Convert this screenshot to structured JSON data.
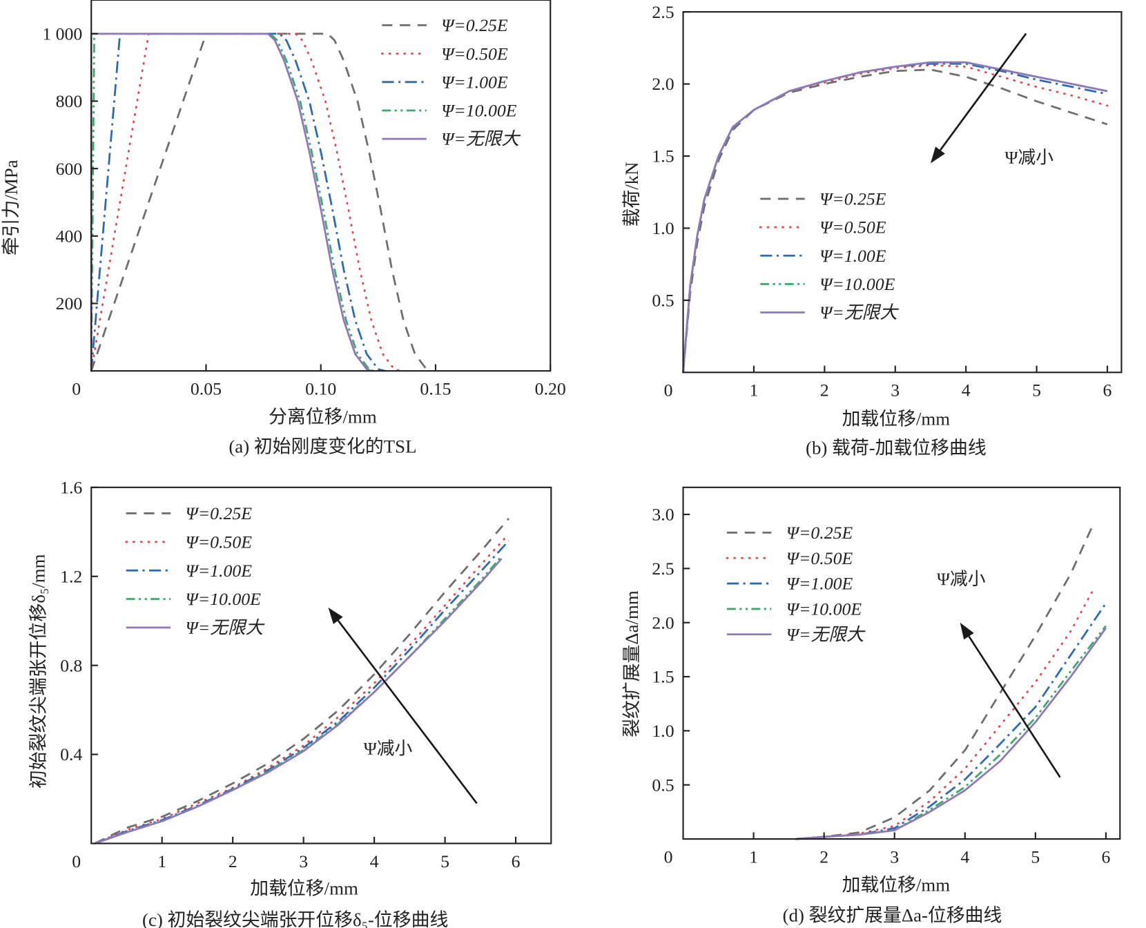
{
  "colors": {
    "0.25E": "#6e6e6e",
    "0.50E": "#e0474c",
    "1.00E": "#2b6bb5",
    "10.00E": "#3da86c",
    "inf": "#8f78b8",
    "axis": "#222222"
  },
  "chart_data": [
    {
      "id": "a",
      "type": "line",
      "caption": "(a) 初始刚度变化的TSL",
      "xlabel": "分离位移/mm",
      "ylabel": "牵引力/MPa",
      "xlim": [
        0,
        0.2
      ],
      "ylim": [
        0,
        1100
      ],
      "origin_label": "0",
      "xticks": [
        {
          "v": 0.05,
          "t": "0.05"
        },
        {
          "v": 0.1,
          "t": "0.10"
        },
        {
          "v": 0.15,
          "t": "0.15"
        },
        {
          "v": 0.2,
          "t": "0.20"
        }
      ],
      "yticks": [
        {
          "v": 200,
          "t": "200"
        },
        {
          "v": 400,
          "t": "400"
        },
        {
          "v": 600,
          "t": "600"
        },
        {
          "v": 800,
          "t": "800"
        },
        {
          "v": 1000,
          "t": "1 000"
        }
      ],
      "legend": "top-right",
      "series": [
        {
          "name": "Ψ=0.25E",
          "key": "0.25E",
          "x": [
            0,
            0.05,
            0.103,
            0.106,
            0.11,
            0.116,
            0.121,
            0.126,
            0.131,
            0.136,
            0.141,
            0.146,
            0.148
          ],
          "y": [
            0,
            1000,
            1000,
            980,
            920,
            800,
            650,
            480,
            300,
            150,
            50,
            5,
            0
          ]
        },
        {
          "name": "Ψ=0.50E",
          "key": "0.50E",
          "x": [
            0,
            0.025,
            0.089,
            0.092,
            0.096,
            0.102,
            0.107,
            0.112,
            0.117,
            0.122,
            0.127,
            0.132,
            0.135
          ],
          "y": [
            0,
            1000,
            1000,
            980,
            920,
            800,
            650,
            480,
            300,
            150,
            50,
            5,
            0
          ]
        },
        {
          "name": "Ψ=1.00E",
          "key": "1.00E",
          "x": [
            0,
            0.0125,
            0.082,
            0.085,
            0.089,
            0.095,
            0.1,
            0.105,
            0.11,
            0.115,
            0.12,
            0.125,
            0.128
          ],
          "y": [
            0,
            1000,
            1000,
            980,
            920,
            800,
            650,
            480,
            300,
            150,
            50,
            5,
            0
          ]
        },
        {
          "name": "Ψ=10.00E",
          "key": "10.00E",
          "x": [
            0,
            0.0013,
            0.078,
            0.081,
            0.085,
            0.091,
            0.096,
            0.101,
            0.106,
            0.111,
            0.116,
            0.121,
            0.123
          ],
          "y": [
            0,
            1000,
            1000,
            980,
            920,
            800,
            650,
            480,
            300,
            150,
            50,
            5,
            0
          ]
        },
        {
          "name": "Ψ=无限大",
          "key": "inf",
          "x": [
            0,
            0,
            0.077,
            0.08,
            0.084,
            0.09,
            0.095,
            0.1,
            0.105,
            0.11,
            0.115,
            0.12,
            0.122
          ],
          "y": [
            0,
            1000,
            1000,
            980,
            920,
            800,
            650,
            480,
            300,
            150,
            50,
            5,
            0
          ]
        }
      ]
    },
    {
      "id": "b",
      "type": "line",
      "caption": "(b) 载荷-加载位移曲线",
      "xlabel": "加载位移/mm",
      "ylabel": "载荷/kN",
      "xlim": [
        0,
        6.2
      ],
      "ylim": [
        0,
        2.5
      ],
      "origin_label": "0",
      "xticks": [
        {
          "v": 1,
          "t": "1"
        },
        {
          "v": 2,
          "t": "2"
        },
        {
          "v": 3,
          "t": "3"
        },
        {
          "v": 4,
          "t": "4"
        },
        {
          "v": 5,
          "t": "5"
        },
        {
          "v": 6,
          "t": "6"
        }
      ],
      "yticks": [
        {
          "v": 0.5,
          "t": "0.5"
        },
        {
          "v": 1.0,
          "t": "1.0"
        },
        {
          "v": 1.5,
          "t": "1.5"
        },
        {
          "v": 2.0,
          "t": "2.0"
        },
        {
          "v": 2.5,
          "t": "2.5"
        }
      ],
      "legend": "center-left",
      "annotation": {
        "text": "Ψ减小",
        "arrow_from": [
          4.85,
          2.35
        ],
        "arrow_to": [
          3.5,
          1.45
        ],
        "text_at": [
          4.55,
          1.45
        ]
      },
      "series": [
        {
          "name": "Ψ=0.25E",
          "key": "0.25E",
          "x": [
            0,
            0.1,
            0.2,
            0.3,
            0.5,
            0.7,
            1,
            1.5,
            2,
            2.5,
            3,
            3.5,
            4,
            4.5,
            5,
            5.5,
            6
          ],
          "y": [
            0,
            0.55,
            0.9,
            1.15,
            1.47,
            1.68,
            1.82,
            1.94,
            2.0,
            2.05,
            2.09,
            2.1,
            2.05,
            1.97,
            1.88,
            1.8,
            1.72
          ]
        },
        {
          "name": "Ψ=0.50E",
          "key": "0.50E",
          "x": [
            0,
            0.1,
            0.2,
            0.3,
            0.5,
            0.7,
            1,
            1.5,
            2,
            2.5,
            3,
            3.5,
            4,
            4.5,
            5,
            5.5,
            6
          ],
          "y": [
            0,
            0.6,
            0.95,
            1.2,
            1.5,
            1.7,
            1.82,
            1.95,
            2.01,
            2.07,
            2.11,
            2.13,
            2.12,
            2.05,
            1.98,
            1.92,
            1.85
          ]
        },
        {
          "name": "Ψ=1.00E",
          "key": "1.00E",
          "x": [
            0,
            0.1,
            0.2,
            0.3,
            0.5,
            0.7,
            1,
            1.5,
            2,
            2.5,
            3,
            3.5,
            4,
            4.5,
            5,
            5.5,
            6
          ],
          "y": [
            0,
            0.6,
            0.95,
            1.2,
            1.5,
            1.7,
            1.82,
            1.95,
            2.02,
            2.08,
            2.12,
            2.14,
            2.14,
            2.09,
            2.03,
            1.98,
            1.93
          ]
        },
        {
          "name": "Ψ=10.00E",
          "key": "10.00E",
          "x": [
            0,
            0.1,
            0.2,
            0.3,
            0.5,
            0.7,
            1,
            1.5,
            2,
            2.5,
            3,
            3.5,
            4,
            4.5,
            5,
            5.5,
            6
          ],
          "y": [
            0,
            0.6,
            0.95,
            1.2,
            1.5,
            1.7,
            1.82,
            1.95,
            2.02,
            2.08,
            2.12,
            2.15,
            2.15,
            2.1,
            2.05,
            2.0,
            1.95
          ]
        },
        {
          "name": "Ψ=无限大",
          "key": "inf",
          "x": [
            0,
            0.1,
            0.2,
            0.3,
            0.5,
            0.7,
            1,
            1.5,
            2,
            2.5,
            3,
            3.5,
            4,
            4.5,
            5,
            5.5,
            6
          ],
          "y": [
            0,
            0.6,
            0.95,
            1.2,
            1.5,
            1.7,
            1.82,
            1.95,
            2.02,
            2.08,
            2.12,
            2.15,
            2.15,
            2.1,
            2.05,
            2.0,
            1.95
          ]
        }
      ]
    },
    {
      "id": "c",
      "type": "line",
      "caption": "(c) 初始裂纹尖端张开位移δ₅-位移曲线",
      "xlabel": "加载位移/mm",
      "ylabel": "初始裂纹尖端张开位移δ₅/mm",
      "xlim": [
        0,
        6.5
      ],
      "ylim": [
        0,
        1.6
      ],
      "origin_label": "0",
      "xticks": [
        {
          "v": 1,
          "t": "1"
        },
        {
          "v": 2,
          "t": "2"
        },
        {
          "v": 3,
          "t": "3"
        },
        {
          "v": 4,
          "t": "4"
        },
        {
          "v": 5,
          "t": "5"
        },
        {
          "v": 6,
          "t": "6"
        }
      ],
      "yticks": [
        {
          "v": 0.4,
          "t": "0.4"
        },
        {
          "v": 0.8,
          "t": "0.8"
        },
        {
          "v": 1.2,
          "t": "1.2"
        },
        {
          "v": 1.6,
          "t": "1.6"
        }
      ],
      "legend": "top-left",
      "annotation": {
        "text": "Ψ减小",
        "arrow_from": [
          5.45,
          0.18
        ],
        "arrow_to": [
          3.35,
          1.06
        ],
        "text_at": [
          3.85,
          0.4
        ]
      },
      "series": [
        {
          "name": "Ψ=0.25E",
          "key": "0.25E",
          "x": [
            0.05,
            0.5,
            1,
            1.5,
            2,
            2.5,
            3,
            3.5,
            4,
            4.5,
            5,
            5.5,
            5.9
          ],
          "y": [
            0,
            0.07,
            0.12,
            0.19,
            0.27,
            0.36,
            0.47,
            0.6,
            0.76,
            0.94,
            1.13,
            1.31,
            1.46
          ]
        },
        {
          "name": "Ψ=0.50E",
          "key": "0.50E",
          "x": [
            0.05,
            0.5,
            1,
            1.5,
            2,
            2.5,
            3,
            3.5,
            4,
            4.5,
            5,
            5.5,
            5.9
          ],
          "y": [
            0,
            0.06,
            0.11,
            0.18,
            0.25,
            0.34,
            0.44,
            0.57,
            0.72,
            0.89,
            1.07,
            1.25,
            1.39
          ]
        },
        {
          "name": "Ψ=1.00E",
          "key": "1.00E",
          "x": [
            0.05,
            0.5,
            1,
            1.5,
            2,
            2.5,
            3,
            3.5,
            4,
            4.5,
            5,
            5.5,
            5.9
          ],
          "y": [
            0,
            0.055,
            0.105,
            0.17,
            0.245,
            0.33,
            0.43,
            0.55,
            0.7,
            0.87,
            1.05,
            1.22,
            1.36
          ]
        },
        {
          "name": "Ψ=10.00E",
          "key": "10.00E",
          "x": [
            0.05,
            0.5,
            1,
            1.5,
            2,
            2.5,
            3,
            3.5,
            4,
            4.5,
            5,
            5.5,
            5.8
          ],
          "y": [
            0,
            0.05,
            0.1,
            0.165,
            0.24,
            0.325,
            0.42,
            0.54,
            0.68,
            0.84,
            1.01,
            1.18,
            1.29
          ]
        },
        {
          "name": "Ψ=无限大",
          "key": "inf",
          "x": [
            0.05,
            0.5,
            1,
            1.5,
            2,
            2.5,
            3,
            3.5,
            4,
            4.5,
            5,
            5.5,
            5.8
          ],
          "y": [
            0,
            0.05,
            0.1,
            0.165,
            0.24,
            0.32,
            0.415,
            0.535,
            0.68,
            0.84,
            1.0,
            1.17,
            1.28
          ]
        }
      ]
    },
    {
      "id": "d",
      "type": "line",
      "caption": "(d) 裂纹扩展量Δa-位移曲线",
      "xlabel": "加载位移/mm",
      "ylabel": "裂纹扩展量Δa/mm",
      "xlim": [
        0,
        6.2
      ],
      "ylim": [
        0,
        3.25
      ],
      "origin_label": "0",
      "xticks": [
        {
          "v": 1,
          "t": "1"
        },
        {
          "v": 2,
          "t": "2"
        },
        {
          "v": 3,
          "t": "3"
        },
        {
          "v": 4,
          "t": "4"
        },
        {
          "v": 5,
          "t": "5"
        },
        {
          "v": 6,
          "t": "6"
        }
      ],
      "yticks": [
        {
          "v": 0.5,
          "t": "0.5"
        },
        {
          "v": 1.0,
          "t": "1.0"
        },
        {
          "v": 1.5,
          "t": "1.5"
        },
        {
          "v": 2.0,
          "t": "2.0"
        },
        {
          "v": 2.5,
          "t": "2.5"
        },
        {
          "v": 3.0,
          "t": "3.0"
        }
      ],
      "legend": "top-left",
      "annotation": {
        "text": "Ψ减小",
        "arrow_from": [
          5.35,
          0.57
        ],
        "arrow_to": [
          3.93,
          2.0
        ],
        "text_at": [
          3.6,
          2.35
        ]
      },
      "series": [
        {
          "name": "Ψ=0.25E",
          "key": "0.25E",
          "x": [
            1.6,
            2,
            2.5,
            3,
            3.5,
            4,
            4.5,
            5,
            5.5,
            5.8
          ],
          "y": [
            0,
            0.02,
            0.06,
            0.2,
            0.45,
            0.82,
            1.35,
            1.88,
            2.45,
            2.88
          ]
        },
        {
          "name": "Ψ=0.50E",
          "key": "0.50E",
          "x": [
            1.6,
            2,
            2.5,
            3,
            3.5,
            4,
            4.5,
            5,
            5.5,
            5.8
          ],
          "y": [
            0,
            0.02,
            0.05,
            0.12,
            0.35,
            0.65,
            1.05,
            1.45,
            1.92,
            2.28
          ]
        },
        {
          "name": "Ψ=1.00E",
          "key": "1.00E",
          "x": [
            1.6,
            2,
            2.5,
            3,
            3.5,
            4,
            4.5,
            5,
            5.5,
            6
          ],
          "y": [
            0,
            0.02,
            0.04,
            0.1,
            0.3,
            0.55,
            0.88,
            1.22,
            1.7,
            2.18
          ]
        },
        {
          "name": "Ψ=10.00E",
          "key": "10.00E",
          "x": [
            1.6,
            2,
            2.5,
            3,
            3.5,
            4,
            4.5,
            5,
            5.5,
            6
          ],
          "y": [
            0,
            0.02,
            0.04,
            0.08,
            0.27,
            0.48,
            0.78,
            1.12,
            1.55,
            1.97
          ]
        },
        {
          "name": "Ψ=无限大",
          "key": "inf",
          "x": [
            1.6,
            2,
            2.5,
            3,
            3.5,
            4,
            4.5,
            5,
            5.5,
            6
          ],
          "y": [
            0,
            0.02,
            0.04,
            0.08,
            0.25,
            0.45,
            0.72,
            1.08,
            1.5,
            1.95
          ]
        }
      ]
    }
  ]
}
